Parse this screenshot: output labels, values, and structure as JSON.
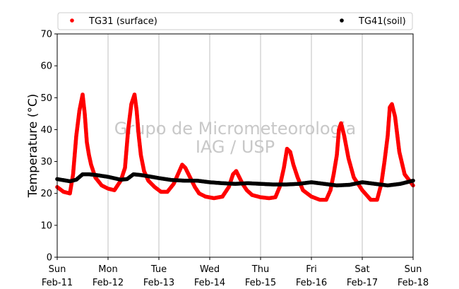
{
  "chart_data": {
    "type": "scatter",
    "ylabel": "Temperature (°C)",
    "ylim": [
      0,
      70
    ],
    "yticks": [
      0,
      10,
      20,
      30,
      40,
      50,
      60,
      70
    ],
    "xlim": [
      "2018-02-11",
      "2018-02-18"
    ],
    "xticks": [
      {
        "day": "Sun",
        "date": "Feb-11"
      },
      {
        "day": "Mon",
        "date": "Feb-12"
      },
      {
        "day": "Tue",
        "date": "Feb-13"
      },
      {
        "day": "Wed",
        "date": "Feb-14"
      },
      {
        "day": "Thu",
        "date": "Feb-15"
      },
      {
        "day": "Fri",
        "date": "Feb-16"
      },
      {
        "day": "Sat",
        "date": "Feb-17"
      },
      {
        "day": "Sun",
        "date": "Feb-18"
      }
    ],
    "grid": "vertical",
    "legend_position": "top",
    "watermark": [
      "Grupo de Micrometeorologia",
      "IAG / USP"
    ],
    "series": [
      {
        "name": "TG31 (surface)",
        "color": "#ff0000",
        "x": [
          "2018-02-11 00:00",
          "2018-02-11 03:00",
          "2018-02-11 06:00",
          "2018-02-11 07:30",
          "2018-02-11 09:00",
          "2018-02-11 10:30",
          "2018-02-11 12:00",
          "2018-02-11 13:00",
          "2018-02-11 14:00",
          "2018-02-11 15:00",
          "2018-02-11 16:00",
          "2018-02-11 18:00",
          "2018-02-11 21:00",
          "2018-02-12 00:00",
          "2018-02-12 03:00",
          "2018-02-12 06:00",
          "2018-02-12 08:00",
          "2018-02-12 09:30",
          "2018-02-12 11:00",
          "2018-02-12 12:30",
          "2018-02-12 13:30",
          "2018-02-12 14:30",
          "2018-02-12 15:30",
          "2018-02-12 17:00",
          "2018-02-12 19:00",
          "2018-02-12 22:00",
          "2018-02-13 01:00",
          "2018-02-13 04:00",
          "2018-02-13 07:00",
          "2018-02-13 09:00",
          "2018-02-13 11:00",
          "2018-02-13 12:30",
          "2018-02-13 14:00",
          "2018-02-13 15:30",
          "2018-02-13 17:00",
          "2018-02-13 19:00",
          "2018-02-13 22:00",
          "2018-02-14 02:00",
          "2018-02-14 06:00",
          "2018-02-14 09:00",
          "2018-02-14 11:00",
          "2018-02-14 12:30",
          "2018-02-14 14:00",
          "2018-02-14 15:30",
          "2018-02-14 17:30",
          "2018-02-14 20:00",
          "2018-02-15 00:00",
          "2018-02-15 04:00",
          "2018-02-15 07:00",
          "2018-02-15 09:00",
          "2018-02-15 11:00",
          "2018-02-15 12:30",
          "2018-02-15 14:00",
          "2018-02-15 15:30",
          "2018-02-15 17:30",
          "2018-02-15 20:00",
          "2018-02-16 00:00",
          "2018-02-16 04:00",
          "2018-02-16 07:00",
          "2018-02-16 09:00",
          "2018-02-16 10:30",
          "2018-02-16 12:00",
          "2018-02-16 13:00",
          "2018-02-16 14:00",
          "2018-02-16 15:30",
          "2018-02-16 17:30",
          "2018-02-16 20:00",
          "2018-02-17 00:00",
          "2018-02-17 04:00",
          "2018-02-17 07:00",
          "2018-02-17 09:00",
          "2018-02-17 10:30",
          "2018-02-17 12:00",
          "2018-02-17 13:00",
          "2018-02-17 14:00",
          "2018-02-17 15:30",
          "2018-02-17 17:30",
          "2018-02-17 20:00",
          "2018-02-18 00:00"
        ],
        "y": [
          22,
          20.5,
          20,
          26,
          38,
          46,
          51,
          45,
          36,
          32,
          29,
          25,
          22.5,
          21.5,
          21,
          24,
          28,
          40,
          48,
          51,
          46,
          38,
          32,
          27,
          24,
          22,
          20.5,
          20.5,
          23,
          26,
          29,
          28,
          26,
          24,
          22,
          20,
          19,
          18.5,
          19,
          22,
          26,
          27,
          25,
          23,
          21,
          19.5,
          18.8,
          18.5,
          18.8,
          22,
          28,
          34,
          33,
          29,
          25,
          21,
          19,
          18,
          18,
          21,
          26,
          32,
          40,
          42,
          38,
          31,
          25,
          21,
          18,
          18,
          23,
          30,
          38,
          47,
          48,
          44,
          33,
          26,
          22.5
        ]
      },
      {
        "name": "TG41(soil)",
        "color": "#000000",
        "x": [
          "2018-02-11 00:00",
          "2018-02-11 06:00",
          "2018-02-11 09:00",
          "2018-02-11 12:00",
          "2018-02-11 15:00",
          "2018-02-11 18:00",
          "2018-02-12 00:00",
          "2018-02-12 06:00",
          "2018-02-12 09:00",
          "2018-02-12 12:00",
          "2018-02-12 15:00",
          "2018-02-12 18:00",
          "2018-02-13 00:00",
          "2018-02-13 06:00",
          "2018-02-13 12:00",
          "2018-02-13 18:00",
          "2018-02-14 00:00",
          "2018-02-14 06:00",
          "2018-02-14 12:00",
          "2018-02-14 18:00",
          "2018-02-15 00:00",
          "2018-02-15 06:00",
          "2018-02-15 12:00",
          "2018-02-15 18:00",
          "2018-02-16 00:00",
          "2018-02-16 06:00",
          "2018-02-16 12:00",
          "2018-02-16 18:00",
          "2018-02-17 00:00",
          "2018-02-17 06:00",
          "2018-02-17 12:00",
          "2018-02-17 18:00",
          "2018-02-18 00:00"
        ],
        "y": [
          24.5,
          23.8,
          24.3,
          26,
          26,
          25.8,
          25.2,
          24.3,
          24.5,
          26,
          25.8,
          25.5,
          24.8,
          24.2,
          24,
          24,
          23.5,
          23.2,
          23,
          23.2,
          23,
          22.8,
          22.8,
          23,
          23.5,
          23,
          22.5,
          22.7,
          23.5,
          23,
          22.5,
          23,
          24
        ]
      }
    ]
  }
}
